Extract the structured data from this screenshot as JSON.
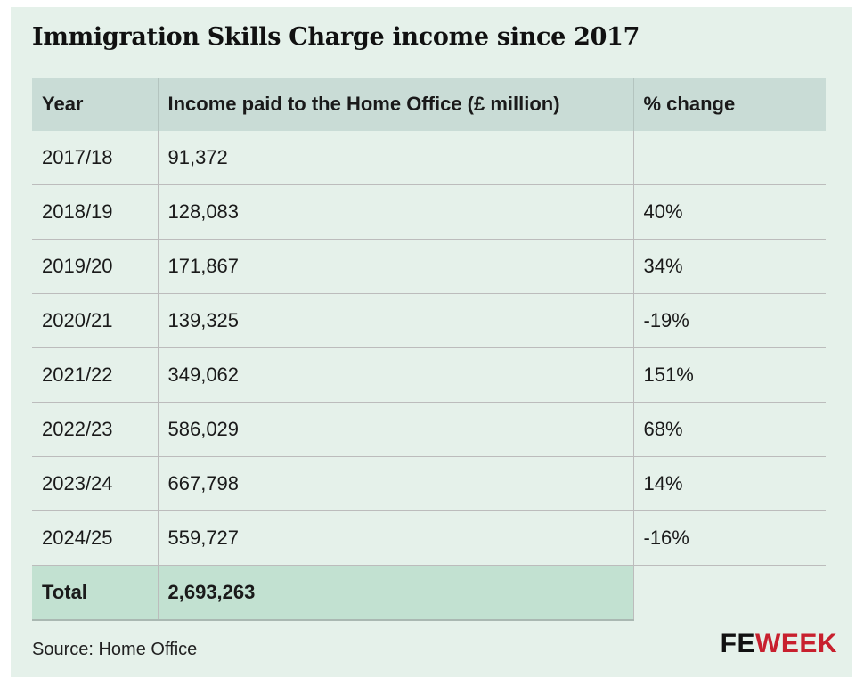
{
  "title": "Immigration Skills Charge income since 2017",
  "source": "Source: Home Office",
  "logo": {
    "part1": "FE",
    "part2": "WEEK",
    "part2_color": "#c8202e"
  },
  "chart_data": {
    "type": "table",
    "title": "Immigration Skills Charge income since 2017",
    "columns": [
      "Year",
      "Income paid to the Home Office (£ million)",
      "% change"
    ],
    "rows": [
      [
        "2017/18",
        "91,372",
        ""
      ],
      [
        "2018/19",
        "128,083",
        "40%"
      ],
      [
        "2019/20",
        "171,867",
        "34%"
      ],
      [
        "2020/21",
        "139,325",
        "-19%"
      ],
      [
        "2021/22",
        "349,062",
        "151%"
      ],
      [
        "2022/23",
        "586,029",
        "68%"
      ],
      [
        "2023/24",
        "667,798",
        "14%"
      ],
      [
        "2024/25",
        "559,727",
        "-16%"
      ]
    ],
    "total": {
      "label": "Total",
      "value": "2,693,263"
    }
  }
}
